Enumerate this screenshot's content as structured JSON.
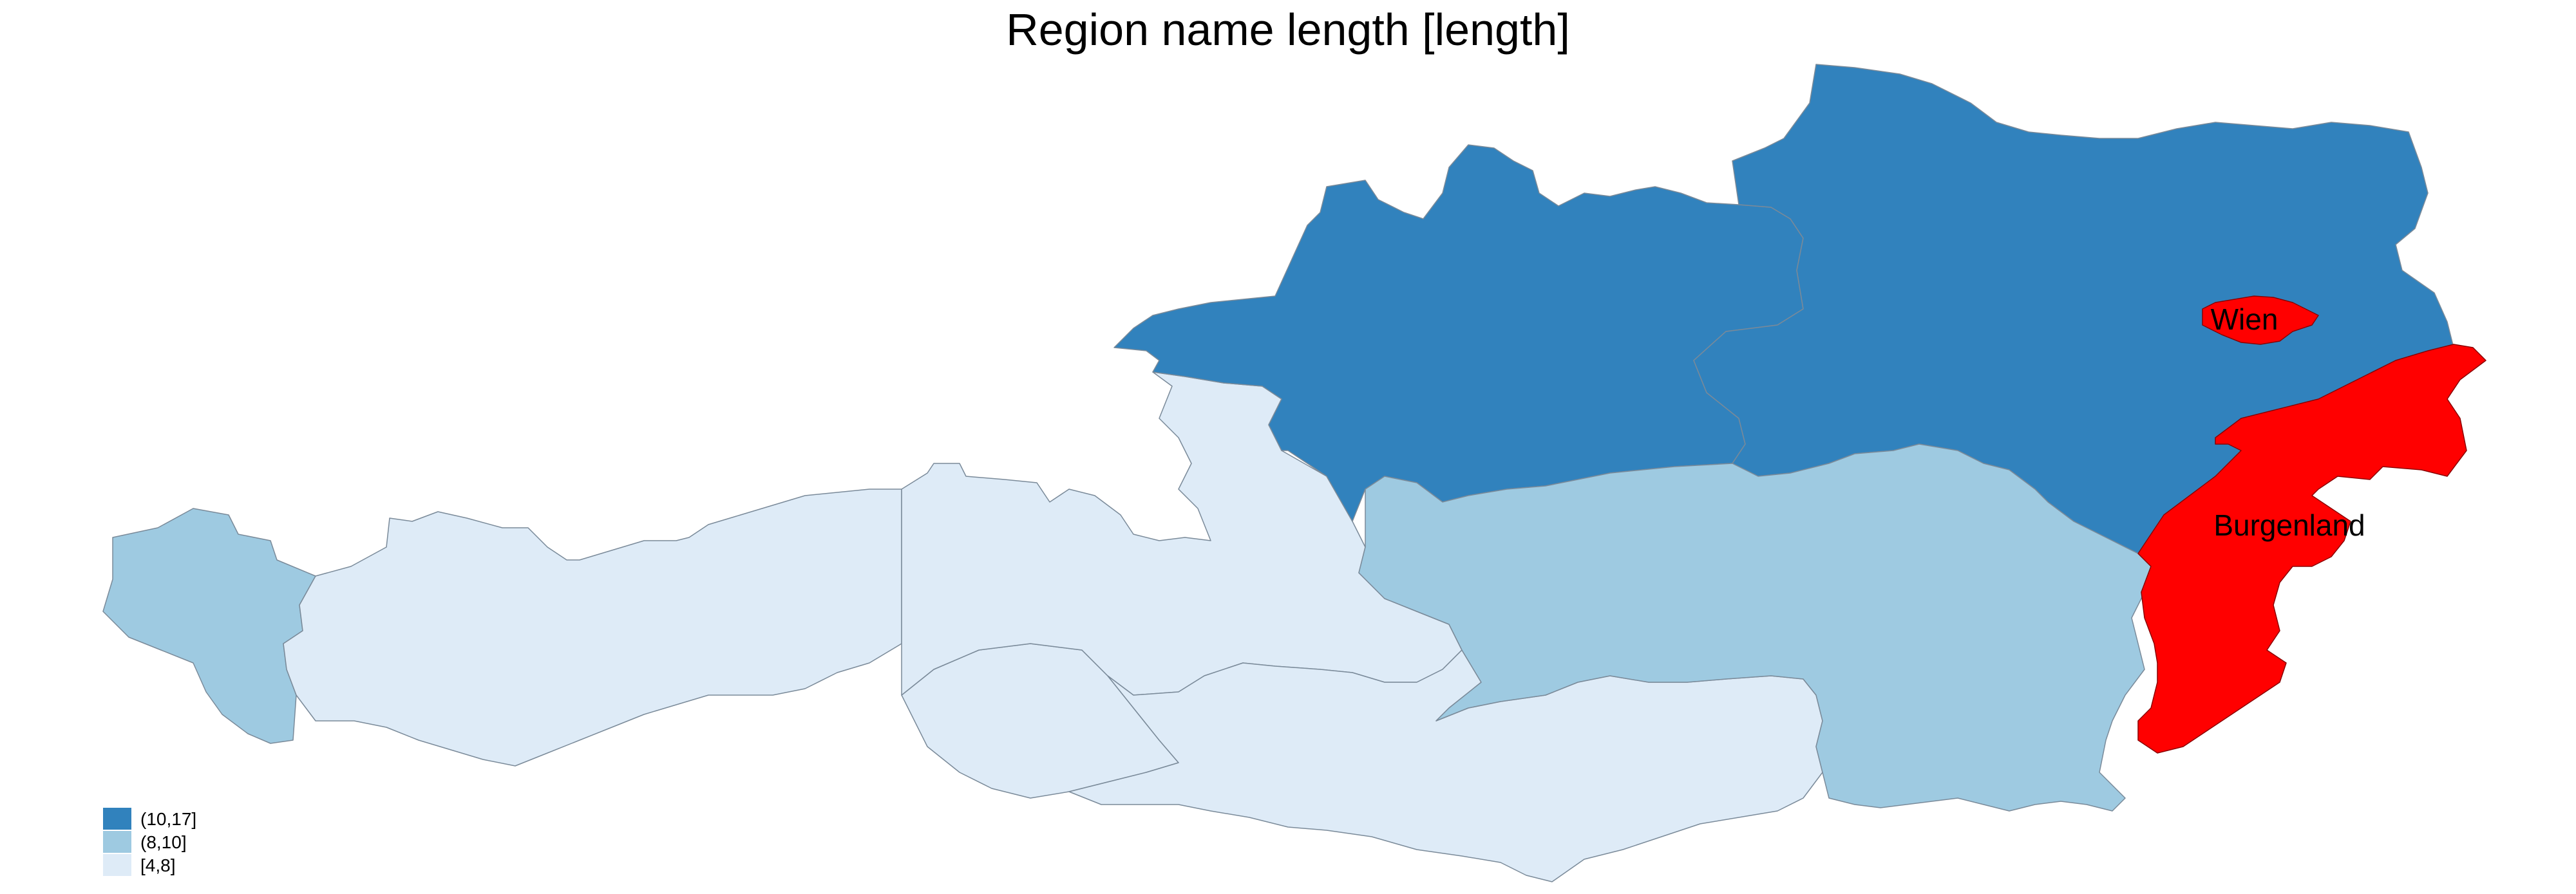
{
  "title": "Region name length [length]",
  "colors": {
    "class_10_17": "#3182bd",
    "class_8_10": "#9ecae1",
    "class_4_8": "#deebf7",
    "highlight": "#ff0000",
    "border": "#7a8a99"
  },
  "legend": {
    "items": [
      {
        "label": "(10,17]",
        "color": "#3182bd"
      },
      {
        "label": "(8,10]",
        "color": "#9ecae1"
      },
      {
        "label": "[4,8]",
        "color": "#deebf7"
      }
    ]
  },
  "regions": [
    {
      "id": "vorarlberg",
      "class": "(8,10]",
      "highlighted": false
    },
    {
      "id": "tirol",
      "class": "[4,8]",
      "highlighted": false
    },
    {
      "id": "salzburg",
      "class": "[4,8]",
      "highlighted": false
    },
    {
      "id": "kaernten",
      "class": "[4,8]",
      "highlighted": false
    },
    {
      "id": "oberoesterreich",
      "class": "(10,17]",
      "highlighted": false
    },
    {
      "id": "niederoesterreich",
      "class": "(10,17]",
      "highlighted": false
    },
    {
      "id": "steiermark",
      "class": "(8,10]",
      "highlighted": false
    },
    {
      "id": "wien",
      "class": "",
      "highlighted": true
    },
    {
      "id": "burgenland",
      "class": "",
      "highlighted": true
    }
  ],
  "labels": {
    "wien": "Wien",
    "burgenland": "Burgenland"
  }
}
